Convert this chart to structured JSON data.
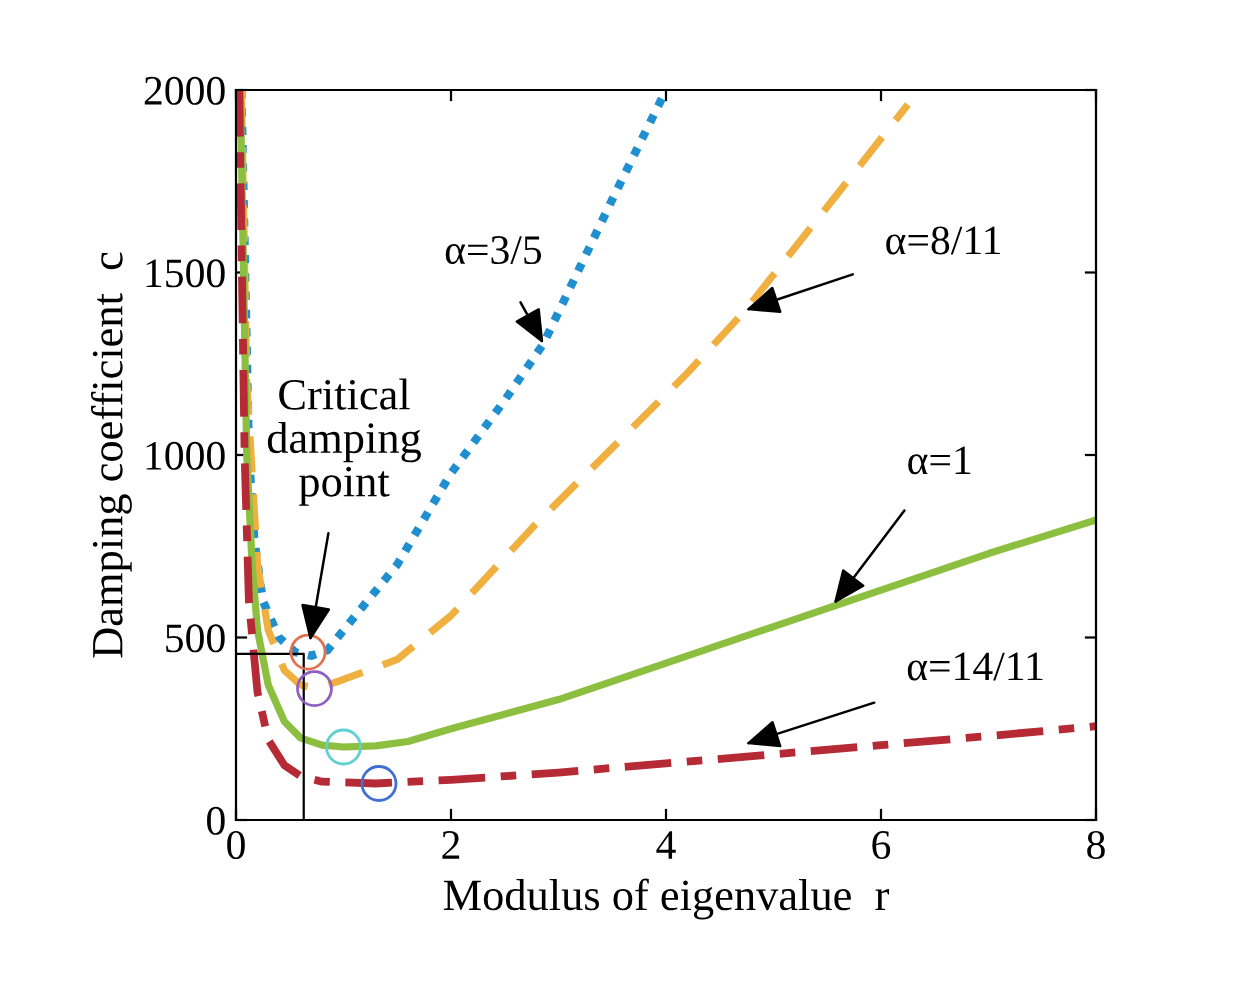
{
  "chart_data": {
    "type": "line",
    "xlabel": "Modulus of eigenvalue  r",
    "ylabel": "Damping coefficient  c",
    "xlim": [
      0,
      8
    ],
    "ylim": [
      0,
      2000
    ],
    "xticks": [
      0,
      2,
      4,
      6,
      8
    ],
    "yticks": [
      0,
      500,
      1000,
      1500,
      2000
    ],
    "grid": false,
    "legend": false,
    "series": [
      {
        "color": "#1f8fd0",
        "line_style": "dotted",
        "x": [
          0.05,
          0.12,
          0.17,
          0.25,
          0.4,
          0.55,
          0.7,
          0.85,
          1.0,
          1.5,
          2.0,
          2.5,
          2.86,
          3.5,
          4.0
        ],
        "values": [
          2000,
          1000,
          767,
          600,
          500,
          460,
          450,
          465,
          520,
          700,
          950,
          1150,
          1305,
          1700,
          2000
        ]
      },
      {
        "color": "#f0b040",
        "line_style": "dashed",
        "x": [
          0.05,
          0.1,
          0.2,
          0.3,
          0.45,
          0.6,
          0.75,
          1.0,
          1.5,
          2.0,
          2.77,
          4.19,
          4.74,
          5.5,
          6.25
        ],
        "values": [
          2000,
          1200,
          700,
          520,
          410,
          370,
          360,
          385,
          440,
          560,
          805,
          1222,
          1397,
          1680,
          1960
        ]
      },
      {
        "color": "#8cbf3f",
        "line_style": "solid",
        "x": [
          0.04,
          0.1,
          0.15,
          0.2,
          0.3,
          0.45,
          0.6,
          0.8,
          1.0,
          1.3,
          1.6,
          2,
          3,
          4,
          5,
          6,
          7,
          8
        ],
        "values": [
          2000,
          1000,
          700,
          520,
          370,
          270,
          225,
          205,
          200,
          203,
          215,
          250,
          330,
          430,
          530,
          630,
          730,
          822
        ]
      },
      {
        "color": "#b52a35",
        "line_style": "dashdot",
        "x": [
          0.03,
          0.08,
          0.12,
          0.2,
          0.3,
          0.45,
          0.6,
          0.8,
          1.3,
          2,
          3,
          4,
          5,
          6,
          7,
          8
        ],
        "values": [
          2000,
          1000,
          600,
          350,
          220,
          150,
          120,
          105,
          100,
          110,
          130,
          155,
          180,
          205,
          230,
          257
        ]
      },
      {
        "color": "#000000",
        "line_style": "solid",
        "x": [
          0,
          0.63,
          0.63
        ],
        "values": [
          455,
          455,
          0
        ]
      },
      {
        "type": "scatter",
        "marker": "circle",
        "color": "#e07050",
        "x": [
          0.67
        ],
        "values": [
          460
        ]
      },
      {
        "type": "scatter",
        "marker": "circle",
        "color": "#9060c0",
        "x": [
          0.73
        ],
        "values": [
          360
        ]
      },
      {
        "type": "scatter",
        "marker": "circle",
        "color": "#60d0d0",
        "x": [
          1.0
        ],
        "values": [
          200
        ]
      },
      {
        "type": "scatter",
        "marker": "circle",
        "color": "#4070d0",
        "x": [
          1.33
        ],
        "values": [
          100
        ]
      }
    ],
    "annotations": [
      {
        "text": "Critical\ndamping\npoint",
        "x": 0.67,
        "y": 460
      },
      {
        "text": "α=3/5",
        "x": 2.86,
        "y": 1305
      },
      {
        "text": "α=8/11",
        "x": 4.74,
        "y": 1397
      },
      {
        "text": "α=1",
        "x": 5.56,
        "y": 592
      },
      {
        "text": "α=14/11",
        "x": 4.74,
        "y": 208
      }
    ]
  }
}
